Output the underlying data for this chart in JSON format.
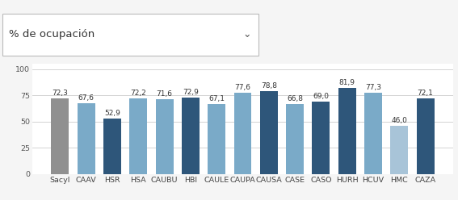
{
  "categories": [
    "Sacyl",
    "CAAV",
    "HSR",
    "HSA",
    "CAUBU",
    "HBI",
    "CAULE",
    "CAUPA",
    "CAUSA",
    "CASE",
    "CASO",
    "HURH",
    "HCUV",
    "HMC",
    "CAZA"
  ],
  "values": [
    72.3,
    67.6,
    52.9,
    72.2,
    71.6,
    72.9,
    67.1,
    77.6,
    78.8,
    66.8,
    69.0,
    81.9,
    77.3,
    46.0,
    72.1
  ],
  "bar_colors": [
    "#909090",
    "#7aaac8",
    "#2e567a",
    "#7aaac8",
    "#7aaac8",
    "#2e567a",
    "#7aaac8",
    "#7aaac8",
    "#2e567a",
    "#7aaac8",
    "#2e567a",
    "#2e567a",
    "#7aaac8",
    "#a8c4d8",
    "#2e567a"
  ],
  "ylim": [
    0,
    105
  ],
  "yticks": [
    0,
    25,
    50,
    75,
    100
  ],
  "title": "% de ocupación",
  "background_color": "#f5f5f5",
  "plot_bg_color": "#ffffff",
  "grid_color": "#cccccc",
  "label_fontsize": 6.8,
  "value_fontsize": 6.5,
  "title_fontsize": 9.5,
  "bar_width": 0.68
}
